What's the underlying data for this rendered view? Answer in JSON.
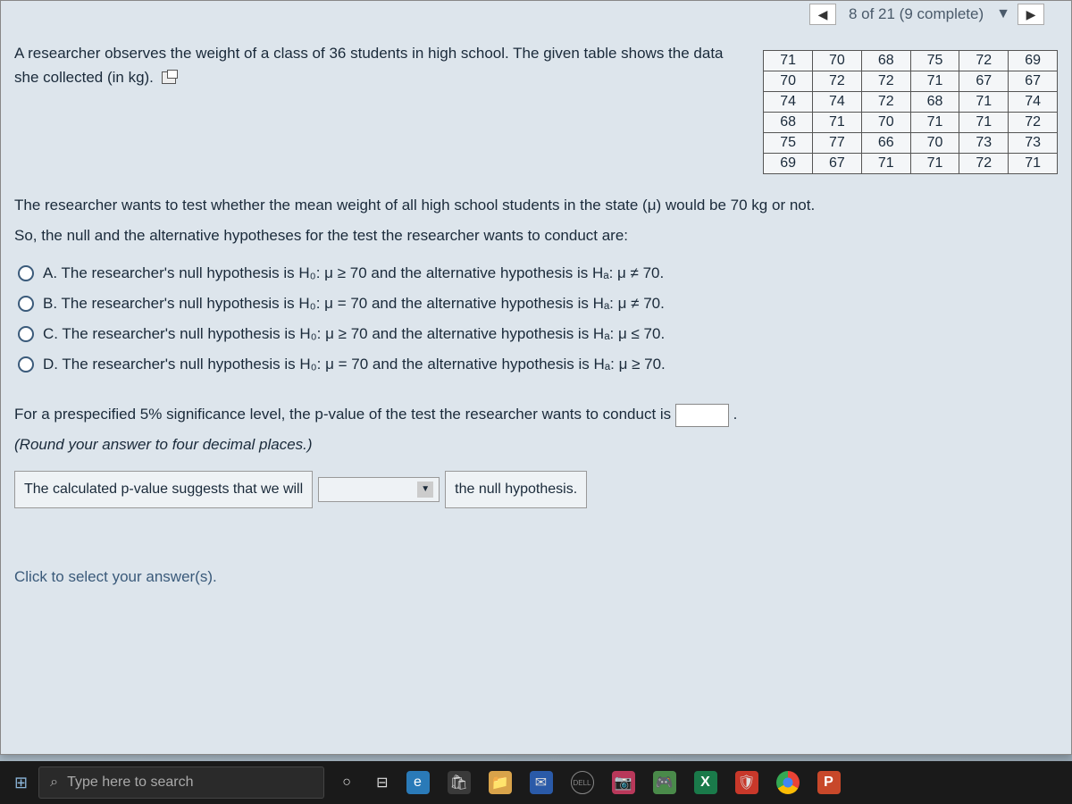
{
  "header": {
    "progress": "8 of 21 (9 complete)"
  },
  "intro": "A researcher observes the weight of a class of 36 students in high school. The given table shows the data she collected (in kg).",
  "table": {
    "rows": [
      [
        71,
        70,
        68,
        75,
        72,
        69
      ],
      [
        70,
        72,
        72,
        71,
        67,
        67
      ],
      [
        74,
        74,
        72,
        68,
        71,
        74
      ],
      [
        68,
        71,
        70,
        71,
        71,
        72
      ],
      [
        75,
        77,
        66,
        70,
        73,
        73
      ],
      [
        69,
        67,
        71,
        71,
        72,
        71
      ]
    ],
    "border_color": "#555555",
    "background_color": "#f4f6f8",
    "cell_fontsize": 16
  },
  "question": {
    "stem1": "The researcher wants to test whether the mean weight of all high school students in the state (μ) would be 70 kg or not.",
    "stem2": "So, the null and the alternative hypotheses for the test the researcher wants to conduct are:",
    "options": {
      "A": "A.  The researcher's null hypothesis is H₀: μ ≥ 70 and the alternative hypothesis is Hₐ: μ ≠ 70.",
      "B": "B.  The researcher's null hypothesis is H₀: μ = 70 and the alternative hypothesis is Hₐ: μ ≠ 70.",
      "C": "C.  The researcher's null hypothesis is H₀: μ ≥ 70 and the alternative hypothesis is Hₐ: μ ≤ 70.",
      "D": "D.  The researcher's null hypothesis is H₀: μ = 70 and the alternative hypothesis is Hₐ: μ ≥ 70."
    }
  },
  "pvalue": {
    "line1_pre": "For a prespecified 5% significance level, the p-value of the test the researcher wants to conduct is ",
    "line1_post": ".",
    "instruction": "(Round your answer to four decimal places.)",
    "segment1": "The calculated p-value suggests that we will",
    "segment2": "the null hypothesis."
  },
  "footer": {
    "click_prompt": "Click to select your answer(s)."
  },
  "taskbar": {
    "search_placeholder": "Type here to search"
  },
  "colors": {
    "page_bg": "#dde5ec",
    "text": "#1a2a3a",
    "accent": "#3a5a7a",
    "taskbar_bg": "#1a1a1a"
  }
}
